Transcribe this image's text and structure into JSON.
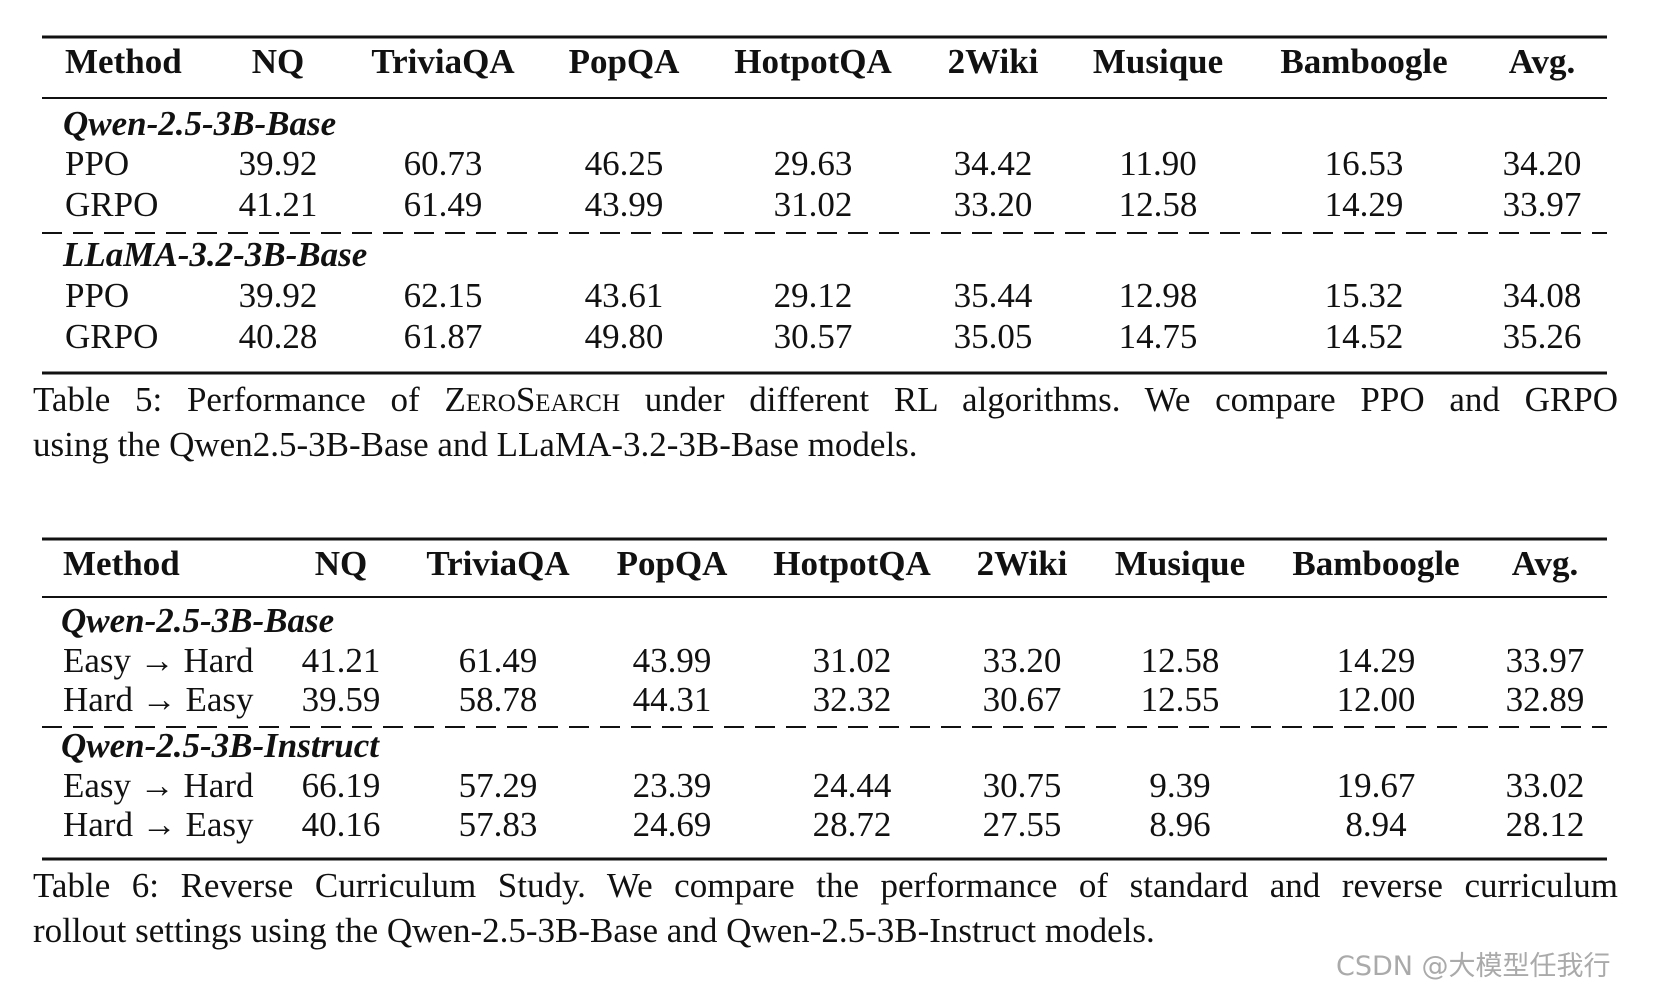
{
  "tables": [
    {
      "columns": [
        "Method",
        "NQ",
        "TriviaQA",
        "PopQA",
        "HotpotQA",
        "2Wiki",
        "Musique",
        "Bamboogle",
        "Avg."
      ],
      "groups": [
        {
          "name": "Qwen-2.5-3B-Base",
          "rows": [
            [
              "PPO",
              "39.92",
              "60.73",
              "46.25",
              "29.63",
              "34.42",
              "11.90",
              "16.53",
              "34.20"
            ],
            [
              "GRPO",
              "41.21",
              "61.49",
              "43.99",
              "31.02",
              "33.20",
              "12.58",
              "14.29",
              "33.97"
            ]
          ]
        },
        {
          "name": "LLaMA-3.2-3B-Base",
          "rows": [
            [
              "PPO",
              "39.92",
              "62.15",
              "43.61",
              "29.12",
              "35.44",
              "12.98",
              "15.32",
              "34.08"
            ],
            [
              "GRPO",
              "40.28",
              "61.87",
              "49.80",
              "30.57",
              "35.05",
              "14.75",
              "14.52",
              "35.26"
            ]
          ]
        }
      ],
      "caption": {
        "line1": [
          "Table 5: Performance of",
          "ZeroSearch",
          "under different RL algorithms. We compare PPO and GRPO"
        ],
        "line2": "using the Qwen2.5-3B-Base and LLaMA-3.2-3B-Base models."
      }
    },
    {
      "columns": [
        "Method",
        "NQ",
        "TriviaQA",
        "PopQA",
        "HotpotQA",
        "2Wiki",
        "Musique",
        "Bamboogle",
        "Avg."
      ],
      "groups": [
        {
          "name": "Qwen-2.5-3B-Base",
          "rows": [
            [
              "Easy → Hard",
              "41.21",
              "61.49",
              "43.99",
              "31.02",
              "33.20",
              "12.58",
              "14.29",
              "33.97"
            ],
            [
              "Hard → Easy",
              "39.59",
              "58.78",
              "44.31",
              "32.32",
              "30.67",
              "12.55",
              "12.00",
              "32.89"
            ]
          ]
        },
        {
          "name": "Qwen-2.5-3B-Instruct",
          "rows": [
            [
              "Easy → Hard",
              "66.19",
              "57.29",
              "23.39",
              "24.44",
              "30.75",
              "9.39",
              "19.67",
              "33.02"
            ],
            [
              "Hard → Easy",
              "40.16",
              "57.83",
              "24.69",
              "28.72",
              "27.55",
              "8.96",
              "8.94",
              "28.12"
            ]
          ]
        }
      ],
      "caption": {
        "line1": [
          "Table 6: Reverse Curriculum Study. We compare the performance of standard and reverse curriculum"
        ],
        "line2": "rollout settings using the Qwen-2.5-3B-Base and Qwen-2.5-3B-Instruct models."
      }
    }
  ],
  "watermark": "CSDN @大模型任我行"
}
